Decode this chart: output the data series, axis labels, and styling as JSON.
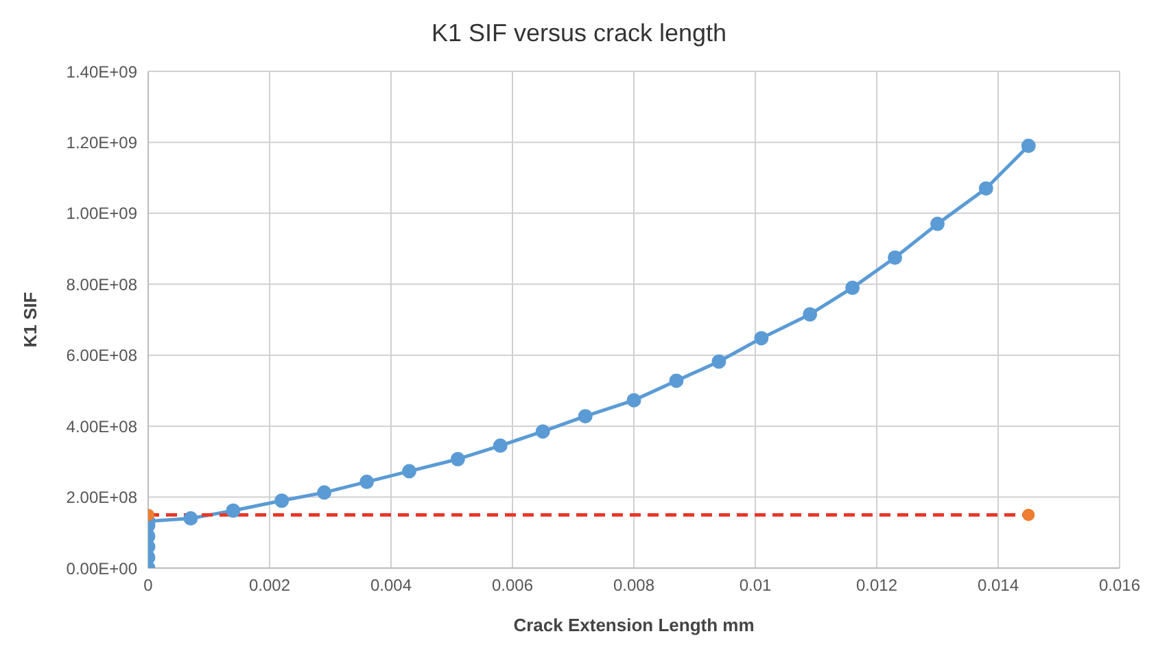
{
  "chart_data": {
    "type": "line",
    "title": "K1 SIF versus crack length",
    "xlabel": "Crack Extension Length mm",
    "ylabel": "K1 SIF",
    "xlim": [
      0,
      0.016
    ],
    "xticks": [
      0,
      0.002,
      0.004,
      0.006,
      0.008,
      0.01,
      0.012,
      0.014,
      0.016
    ],
    "ylim": [
      0,
      1400000000
    ],
    "yticks": [
      {
        "value": 0,
        "label": "0.00E+00"
      },
      {
        "value": 200000000,
        "label": "2.00E+08"
      },
      {
        "value": 400000000,
        "label": "4.00E+08"
      },
      {
        "value": 600000000,
        "label": "6.00E+08"
      },
      {
        "value": 800000000,
        "label": "8.00E+08"
      },
      {
        "value": 1000000000,
        "label": "1.00E+09"
      },
      {
        "value": 1200000000,
        "label": "1.20E+09"
      },
      {
        "value": 1400000000,
        "label": "1.40E+09"
      }
    ],
    "grid": true,
    "marker": "circle",
    "series": [
      {
        "color": "#5b9bd5",
        "line_style": "solid",
        "x": [
          0,
          0,
          0,
          0,
          0,
          0,
          0.0007,
          0.0014,
          0.0022,
          0.0029,
          0.0036,
          0.0043,
          0.0051,
          0.0058,
          0.0065,
          0.0072,
          0.008,
          0.0087,
          0.0094,
          0.0101,
          0.0109,
          0.0116,
          0.0123,
          0.013,
          0.0138,
          0.0145
        ],
        "values": [
          0,
          30000000,
          60000000,
          90000000,
          120000000,
          132000000,
          140000000,
          162000000,
          190000000,
          213000000,
          243000000,
          273000000,
          307000000,
          345000000,
          385000000,
          428000000,
          473000000,
          528000000,
          582000000,
          648000000,
          715000000,
          790000000,
          875000000,
          970000000,
          1070000000,
          1190000000
        ]
      },
      {
        "color": "#e8382a",
        "line_style": "dashed",
        "marker": "none",
        "x": [
          0,
          0.0145
        ],
        "values": [
          150000000,
          150000000
        ]
      },
      {
        "type": "scatter",
        "color": "#ed7d31",
        "x": [
          0,
          0.0145
        ],
        "values": [
          150000000,
          150000000
        ]
      }
    ]
  }
}
